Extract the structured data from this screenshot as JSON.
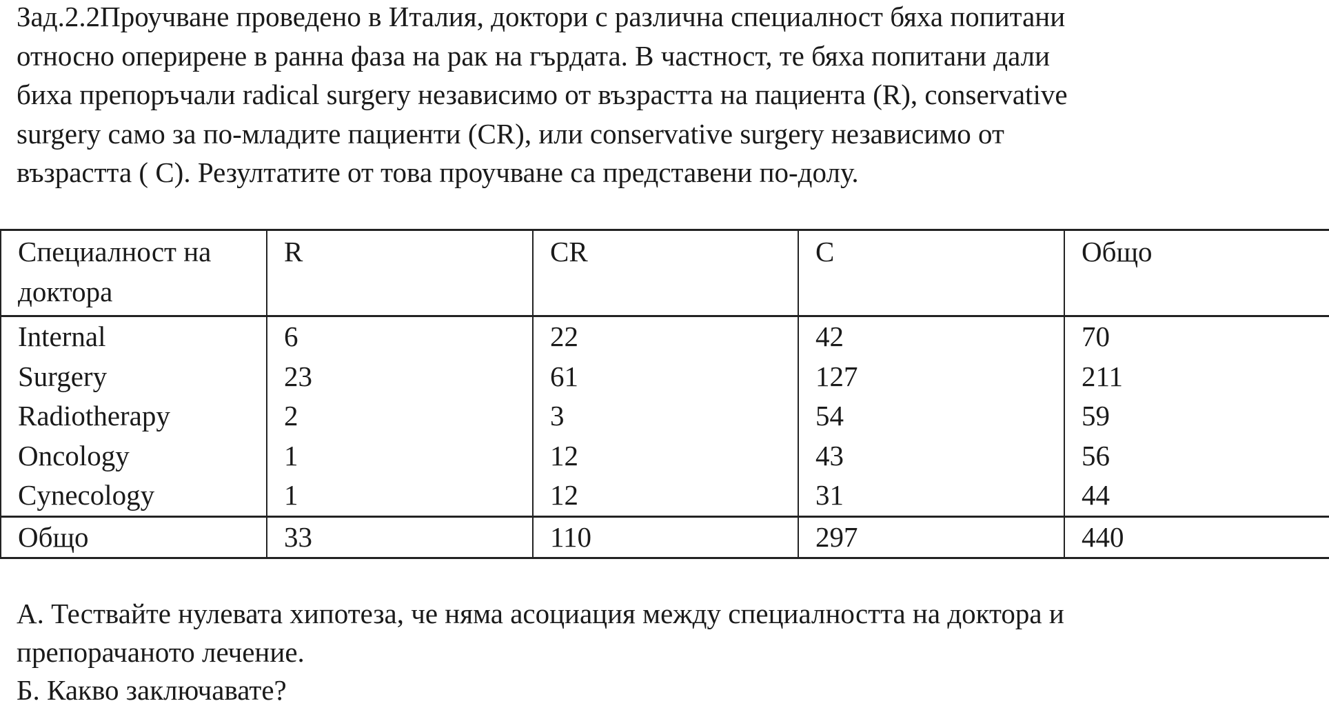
{
  "intro_lines": [
    "Зад.2.2Проучване проведено в Италия, доктори с различна специалност бяха попитани",
    "относно оперирене в ранна фаза на рак на гърдата. В частност, те бяха попитани дали",
    "биха препоръчали radical surgery независимо от възрастта на пациента (R), conservative",
    "surgery само за по-младите пациенти (CR), или conservative surgery независимо от",
    "възрастта ( C). Резултатите от това проучване са представени по-долу."
  ],
  "table": {
    "headers": [
      "Специалност на доктора",
      "R",
      "CR",
      "C",
      "Общо"
    ],
    "rows": [
      [
        "Internal",
        "6",
        "22",
        "42",
        "70"
      ],
      [
        "Surgery",
        "23",
        "61",
        "127",
        "211"
      ],
      [
        "Radiotherapy",
        "2",
        "3",
        "54",
        "59"
      ],
      [
        "Oncology",
        "1",
        "12",
        "43",
        "56"
      ],
      [
        "Cynecology",
        "1",
        "12",
        "31",
        "44"
      ]
    ],
    "total": [
      "Общо",
      "33",
      "110",
      "297",
      "440"
    ]
  },
  "questions": [
    "А. Тествайте нулевата хипотеза, че няма асоциация между специалността на доктора и",
    "препорачаното лечение.",
    "Б. Какво заключавате?"
  ]
}
